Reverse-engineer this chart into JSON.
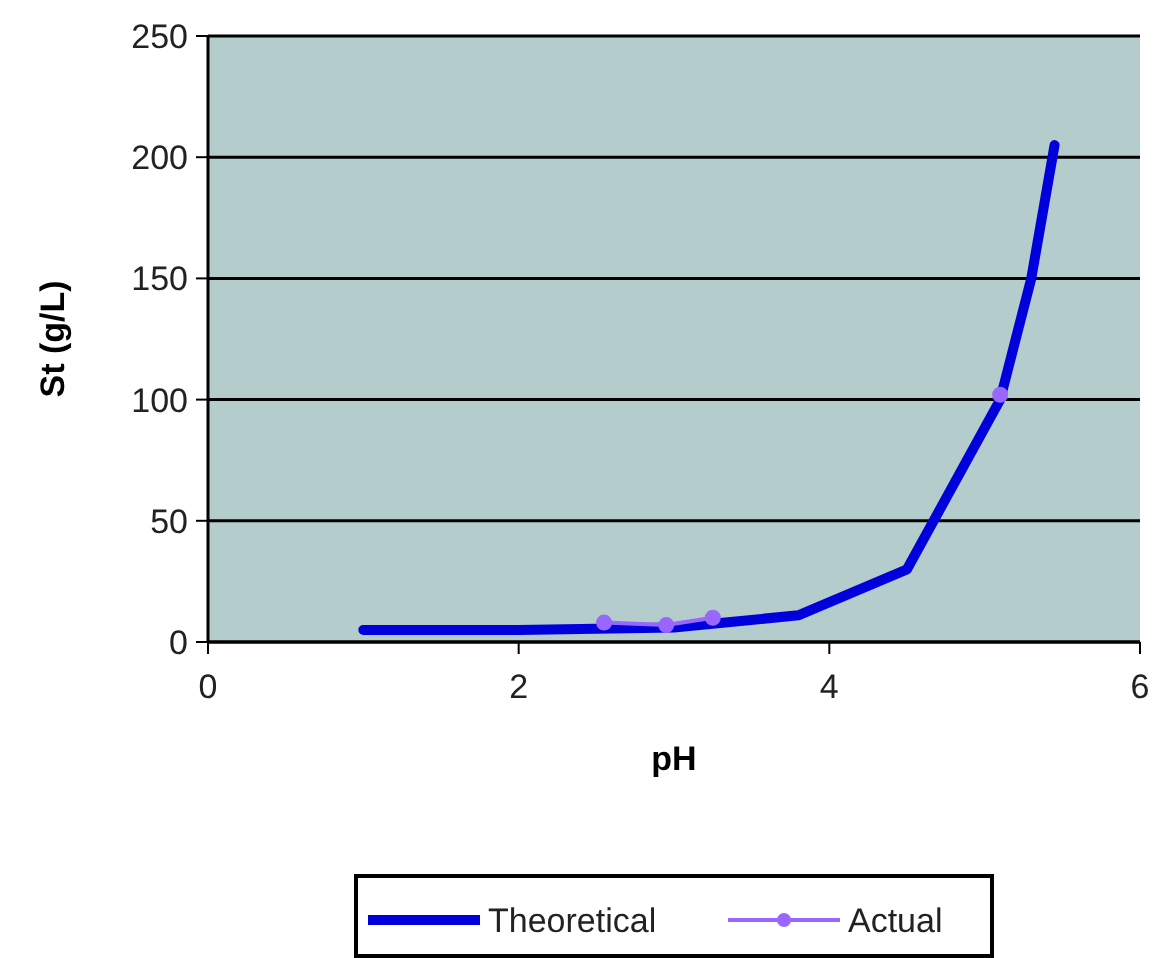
{
  "chart_data": {
    "type": "line",
    "xlabel": "pH",
    "ylabel": "St (g/L)",
    "xlim": [
      0,
      6
    ],
    "xticks": [
      0,
      2,
      4,
      6
    ],
    "ylim": [
      0,
      250
    ],
    "yticks": [
      0,
      50,
      100,
      150,
      200,
      250
    ],
    "grid": "y",
    "legend": "bottom",
    "series": [
      {
        "name": "Theoretical",
        "color": "#0000dd",
        "marker": "none",
        "x": [
          1,
          2,
          3,
          3.8,
          4.5,
          5.1,
          5.3,
          5.45
        ],
        "values": [
          5,
          5,
          6,
          11,
          30,
          100,
          150,
          205
        ]
      },
      {
        "name": "Actual",
        "color": "#9966ff",
        "marker": "circle",
        "x": [
          2.55,
          2.95,
          3.25,
          4.2,
          5.1
        ],
        "values": [
          8,
          7,
          10,
          null,
          102
        ]
      }
    ]
  }
}
